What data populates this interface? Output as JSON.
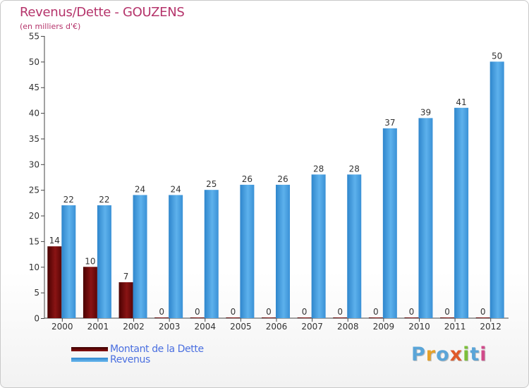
{
  "header": {
    "title": "Revenus/Dette - GOUZENS",
    "subtitle": "(en milliers d'€)"
  },
  "legend": {
    "items": [
      {
        "label": "Montant de la Dette",
        "color": "#6b0a0a"
      },
      {
        "label": "Revenus",
        "color": "#4da6e8"
      }
    ]
  },
  "logo": {
    "text": "Proxiti",
    "letters": [
      {
        "char": "P",
        "color": "#5aa5d8"
      },
      {
        "char": "r",
        "color": "#e6a12a"
      },
      {
        "char": "o",
        "color": "#5aa5d8"
      },
      {
        "char": "x",
        "color": "#e05a2a"
      },
      {
        "char": "i",
        "color": "#7cbf3a"
      },
      {
        "char": "t",
        "color": "#5aa5d8"
      },
      {
        "char": "i",
        "color": "#d14a8a"
      }
    ]
  },
  "chart_data": {
    "type": "bar",
    "title": "Revenus/Dette - GOUZENS",
    "subtitle": "(en milliers d'€)",
    "xlabel": "",
    "ylabel": "",
    "categories": [
      "2000",
      "2001",
      "2002",
      "2003",
      "2004",
      "2005",
      "2006",
      "2007",
      "2008",
      "2009",
      "2010",
      "2011",
      "2012"
    ],
    "series": [
      {
        "name": "Montant de la Dette",
        "color": "#6b0a0a",
        "values": [
          14,
          10,
          7,
          0,
          0,
          0,
          0,
          0,
          0,
          0,
          0,
          0,
          0
        ]
      },
      {
        "name": "Revenus",
        "color": "#4da6e8",
        "values": [
          22,
          22,
          24,
          24,
          25,
          26,
          26,
          28,
          28,
          37,
          39,
          41,
          50
        ]
      }
    ],
    "ylim": [
      0,
      55
    ],
    "yticks": [
      0,
      5,
      10,
      15,
      20,
      25,
      30,
      35,
      40,
      45,
      50,
      55
    ],
    "grid": false,
    "legend": "bottom-left"
  }
}
